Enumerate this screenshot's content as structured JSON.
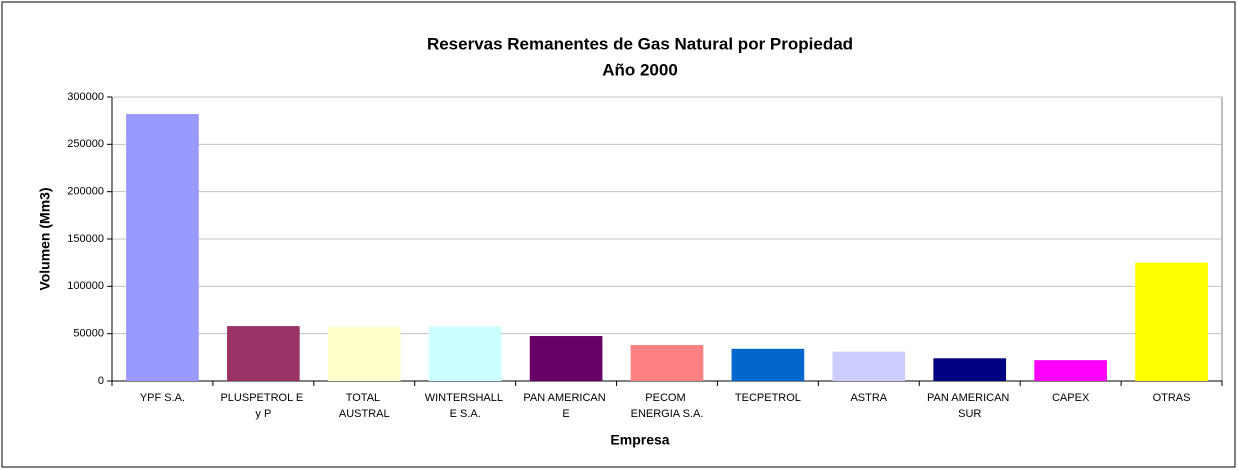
{
  "chart_data": {
    "type": "bar",
    "title": "Reservas Remanentes de Gas Natural por Propiedad",
    "subtitle": "Año 2000",
    "x_label": "Empresa",
    "y_label": "Volumen (Mm3)",
    "categories": [
      "YPF S.A.",
      "PLUSPETROL E y P",
      "TOTAL AUSTRAL",
      "WINTERSHALL E S.A.",
      "PAN AMERICAN E",
      "PECOM ENERGIA S.A.",
      "TECPETROL",
      "ASTRA",
      "PAN AMERICAN SUR",
      "CAPEX",
      "OTRAS"
    ],
    "values": [
      282000,
      58000,
      57000,
      57500,
      47500,
      38000,
      34000,
      31000,
      24000,
      22000,
      125000
    ],
    "colors": [
      "#9999ff",
      "#993366",
      "#ffffcc",
      "#ccffff",
      "#660066",
      "#ff8080",
      "#0066cc",
      "#ccccff",
      "#000080",
      "#ff00ff",
      "#ffff00"
    ],
    "ylim": [
      0,
      300000
    ],
    "yticks": [
      0,
      50000,
      100000,
      150000,
      200000,
      250000,
      300000
    ],
    "grid": true
  }
}
